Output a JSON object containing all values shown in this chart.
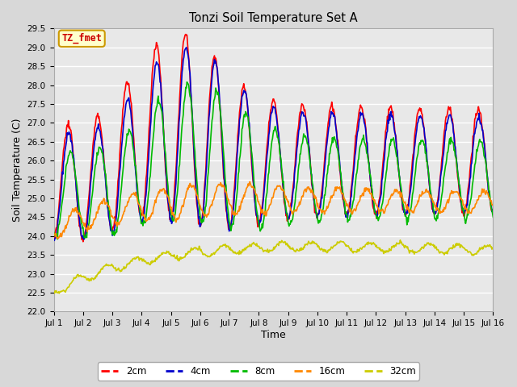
{
  "title": "Tonzi Soil Temperature Set A",
  "xlabel": "Time",
  "ylabel": "Soil Temperature (C)",
  "ylim": [
    22.0,
    29.5
  ],
  "yticks": [
    22.0,
    22.5,
    23.0,
    23.5,
    24.0,
    24.5,
    25.0,
    25.5,
    26.0,
    26.5,
    27.0,
    27.5,
    28.0,
    28.5,
    29.0,
    29.5
  ],
  "xtick_labels": [
    "Jul 1",
    "Jul 2",
    "Jul 3",
    "Jul 4",
    "Jul 5",
    "Jul 6",
    "Jul 7",
    "Jul 8",
    "Jul 9",
    "Jul 10",
    "Jul 11",
    "Jul 12",
    "Jul 13",
    "Jul 14",
    "Jul 15",
    "Jul 16"
  ],
  "annotation": "TZ_fmet",
  "annotation_color": "#cc0000",
  "annotation_bg": "#ffffcc",
  "annotation_border": "#cc9900",
  "colors": {
    "2cm": "#ff0000",
    "4cm": "#0000cc",
    "8cm": "#00bb00",
    "16cm": "#ff8800",
    "32cm": "#cccc00"
  },
  "fig_bg": "#d8d8d8",
  "plot_bg": "#e8e8e8",
  "grid_color": "#ffffff"
}
